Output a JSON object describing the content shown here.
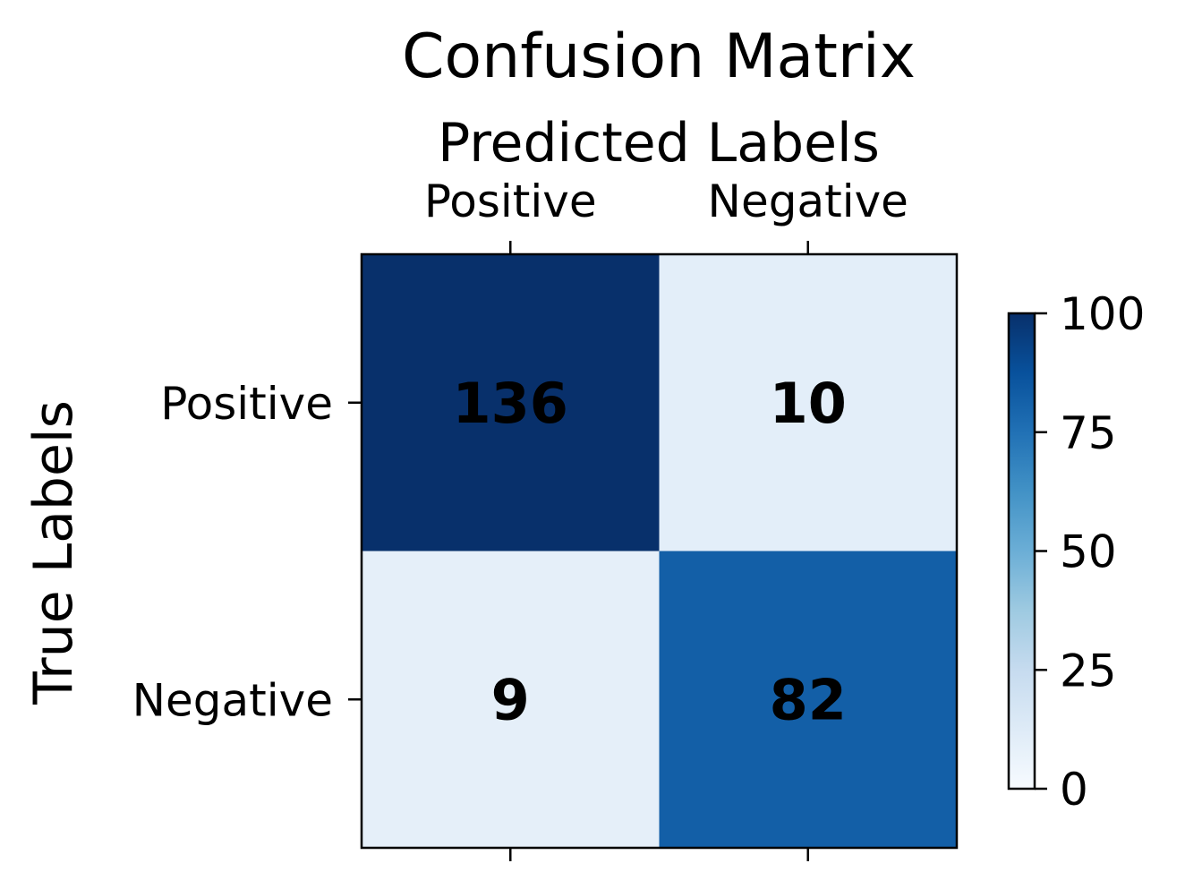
{
  "chart_data": {
    "type": "heatmap",
    "title": "Confusion Matrix",
    "xlabel": "Predicted Labels",
    "ylabel": "True Labels",
    "x_categories": [
      "Positive",
      "Negative"
    ],
    "y_categories": [
      "Positive",
      "Negative"
    ],
    "values": [
      [
        136,
        10
      ],
      [
        9,
        82
      ]
    ],
    "colormap": "Blues",
    "colorbar": {
      "min": 0,
      "max": 100,
      "ticks": [
        0,
        25,
        50,
        75,
        100
      ],
      "colors": [
        "#f7fbff",
        "#deebf7",
        "#c6dbef",
        "#9ecae1",
        "#6baed6",
        "#4292c6",
        "#2171b5",
        "#08519c",
        "#08306b"
      ]
    },
    "cell_text_color": "#000000",
    "grid": false
  }
}
